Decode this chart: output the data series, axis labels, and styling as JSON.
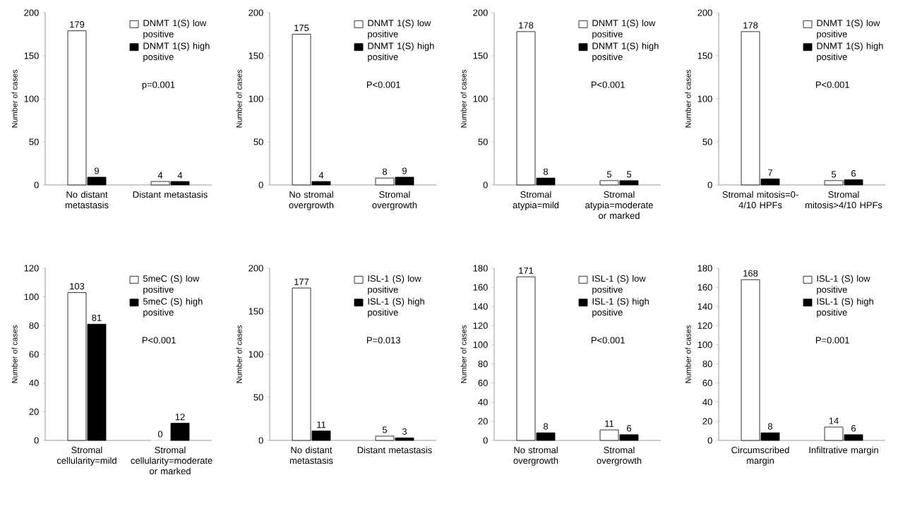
{
  "chart_data": [
    {
      "type": "bar",
      "categories": [
        "No distant metastasis",
        "Distant metastasis"
      ],
      "ylabel": "Number of cases",
      "ylim": [
        0,
        200
      ],
      "yticks": [
        0,
        50,
        100,
        150,
        200
      ],
      "legend": "top right",
      "data_labels": true,
      "annotations": [
        "p=0.001"
      ],
      "series": [
        {
          "name": "DNMT 1(S) low positive",
          "color": "#ffffff",
          "values": [
            179,
            4
          ]
        },
        {
          "name": "DNMT 1(S) high positive",
          "color": "#000000",
          "values": [
            9,
            4
          ]
        }
      ]
    },
    {
      "type": "bar",
      "categories": [
        "No stromal overgrowth",
        "Stromal overgrowth"
      ],
      "ylabel": "Number of cases",
      "ylim": [
        0,
        200
      ],
      "yticks": [
        0,
        50,
        100,
        150,
        200
      ],
      "legend": "top right",
      "data_labels": true,
      "annotations": [
        "P<0.001"
      ],
      "series": [
        {
          "name": "DNMT 1(S) low positive",
          "color": "#ffffff",
          "values": [
            175,
            8
          ]
        },
        {
          "name": "DNMT 1(S) high positive",
          "color": "#000000",
          "values": [
            4,
            9
          ]
        }
      ]
    },
    {
      "type": "bar",
      "categories": [
        "Stromal atypia=mild",
        "Stromal atypia=moderate or marked"
      ],
      "ylabel": "Number of cases",
      "ylim": [
        0,
        200
      ],
      "yticks": [
        0,
        50,
        100,
        150,
        200
      ],
      "legend": "top right",
      "data_labels": true,
      "annotations": [
        "P<0.001"
      ],
      "series": [
        {
          "name": "DNMT 1(S) low positive",
          "color": "#ffffff",
          "values": [
            178,
            5
          ]
        },
        {
          "name": "DNMT 1(S) high positive",
          "color": "#000000",
          "values": [
            8,
            5
          ]
        }
      ]
    },
    {
      "type": "bar",
      "categories": [
        "Stromal mitosis=0-4/10 HPFs",
        "Stromal mitosis>4/10 HPFs"
      ],
      "ylabel": "Number of cases",
      "ylim": [
        0,
        200
      ],
      "yticks": [
        0,
        50,
        100,
        150,
        200
      ],
      "legend": "top right",
      "data_labels": true,
      "annotations": [
        "P<0.001"
      ],
      "series": [
        {
          "name": "DNMT 1(S) low positive",
          "color": "#ffffff",
          "values": [
            178,
            5
          ]
        },
        {
          "name": "DNMT 1(S) high positive",
          "color": "#000000",
          "values": [
            7,
            6
          ]
        }
      ]
    },
    {
      "type": "bar",
      "categories": [
        "Stromal cellularity=mild",
        "Stromal cellularity=moderate or marked"
      ],
      "ylabel": "Number of cases",
      "ylim": [
        0,
        120
      ],
      "yticks": [
        0,
        20,
        40,
        60,
        80,
        100,
        120
      ],
      "legend": "top right",
      "data_labels": true,
      "annotations": [
        "P<0.001"
      ],
      "series": [
        {
          "name": "5meC (S) low positive",
          "color": "#ffffff",
          "values": [
            103,
            0
          ]
        },
        {
          "name": "5meC (S) high positive",
          "color": "#000000",
          "values": [
            81,
            12
          ]
        }
      ]
    },
    {
      "type": "bar",
      "categories": [
        "No distant metastasis",
        "Distant metastasis"
      ],
      "ylabel": "Number of cases",
      "ylim": [
        0,
        200
      ],
      "yticks": [
        0,
        50,
        100,
        150,
        200
      ],
      "legend": "top right",
      "data_labels": true,
      "annotations": [
        "P=0.013"
      ],
      "series": [
        {
          "name": "ISL-1 (S) low positive",
          "color": "#ffffff",
          "values": [
            177,
            5
          ]
        },
        {
          "name": "ISL-1 (S) high positive",
          "color": "#000000",
          "values": [
            11,
            3
          ]
        }
      ]
    },
    {
      "type": "bar",
      "categories": [
        "No stromal overgrowth",
        "Stromal overgrowth"
      ],
      "ylabel": "Number of cases",
      "ylim": [
        0,
        180
      ],
      "yticks": [
        0,
        20,
        40,
        60,
        80,
        100,
        120,
        140,
        160,
        180
      ],
      "legend": "top right",
      "data_labels": true,
      "annotations": [
        "P<0.001"
      ],
      "series": [
        {
          "name": "ISL-1 (S) low positive",
          "color": "#ffffff",
          "values": [
            171,
            11
          ]
        },
        {
          "name": "ISL-1 (S) high positive",
          "color": "#000000",
          "values": [
            8,
            6
          ]
        }
      ]
    },
    {
      "type": "bar",
      "categories": [
        "Circumscribed margin",
        "Infiltrative margin"
      ],
      "ylabel": "Number of cases",
      "ylim": [
        0,
        180
      ],
      "yticks": [
        0,
        20,
        40,
        60,
        80,
        100,
        120,
        140,
        160,
        180
      ],
      "legend": "top right",
      "data_labels": true,
      "annotations": [
        "P=0.001"
      ],
      "series": [
        {
          "name": "ISL-1 (S) low positive",
          "color": "#ffffff",
          "values": [
            168,
            14
          ]
        },
        {
          "name": "ISL-1 (S) high positive",
          "color": "#000000",
          "values": [
            8,
            6
          ]
        }
      ]
    }
  ]
}
